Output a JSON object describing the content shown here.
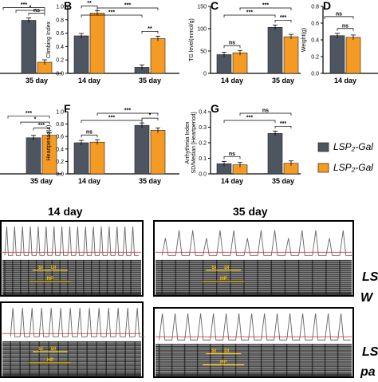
{
  "colors": {
    "series1": "#4d5560",
    "series2": "#f59a23",
    "trace_line": "#666666",
    "baseline": "#e05050",
    "ann": "#f5c000"
  },
  "panel_letters": [
    "B",
    "C",
    "D",
    "F",
    "G"
  ],
  "chart_data": [
    {
      "id": "A",
      "type": "bar",
      "categories": [
        "35 day"
      ],
      "series": [
        {
          "values": [
            0.95
          ]
        },
        {
          "values": [
            0.2
          ]
        }
      ],
      "ylim": [
        0,
        1.2
      ],
      "sig": [
        "ns",
        "*",
        "***"
      ]
    },
    {
      "id": "B",
      "type": "bar",
      "categories": [
        "14 day",
        "35 day"
      ],
      "series": [
        {
          "values": [
            0.56,
            0.09
          ]
        },
        {
          "values": [
            0.9,
            0.52
          ]
        }
      ],
      "ylabel": "Climbing Index",
      "ylim": [
        0,
        1.0
      ],
      "ticks": [
        "0.0",
        "0.2",
        "0.4",
        "0.6",
        "0.8",
        "1.0"
      ],
      "sig": [
        "**",
        "**",
        "***",
        "***"
      ]
    },
    {
      "id": "C",
      "type": "bar",
      "categories": [
        "14 day",
        "35 day"
      ],
      "series": [
        {
          "values": [
            42,
            103
          ]
        },
        {
          "values": [
            46,
            82
          ]
        }
      ],
      "ylabel": "TG level(mmol/g)",
      "ylim": [
        0,
        150
      ],
      "ticks": [
        "0",
        "50",
        "100",
        "150"
      ],
      "sig": [
        "ns",
        "***",
        "***",
        "***"
      ]
    },
    {
      "id": "D",
      "type": "bar",
      "categories": [
        "14 day"
      ],
      "series": [
        {
          "values": [
            0.45
          ]
        },
        {
          "values": [
            0.43
          ]
        }
      ],
      "ylabel": "Weight(g)",
      "ylim": [
        0,
        0.8
      ],
      "ticks": [
        "0.0",
        "0.2",
        "0.4",
        "0.6",
        "0.8"
      ],
      "sig": [
        "ns",
        "ns"
      ]
    },
    {
      "id": "E",
      "type": "bar",
      "categories": [
        "35 day"
      ],
      "series": [
        {
          "values": [
            0.58
          ]
        },
        {
          "values": [
            0.62
          ]
        }
      ],
      "ylim": [
        0,
        1.0
      ],
      "sig": [
        "***",
        "*",
        "***"
      ]
    },
    {
      "id": "F",
      "type": "bar",
      "categories": [
        "14 day",
        "35 day"
      ],
      "series": [
        {
          "values": [
            0.5,
            0.78
          ]
        },
        {
          "values": [
            0.51,
            0.7
          ]
        }
      ],
      "ylabel": "Heartperiod(s)",
      "ylim": [
        0,
        1.0
      ],
      "ticks": [
        "0.0",
        "0.2",
        "0.4",
        "0.6",
        "0.8",
        "1.0"
      ],
      "sig": [
        "ns",
        "*",
        "***",
        "***"
      ]
    },
    {
      "id": "G",
      "type": "bar",
      "categories": [
        "14 day",
        "35 day"
      ],
      "series": [
        {
          "values": [
            0.065,
            0.26
          ]
        },
        {
          "values": [
            0.058,
            0.068
          ]
        }
      ],
      "ylabel": "Arrhythmia Index\nSD/Median [Heartperiod]",
      "ylim": [
        0,
        0.4
      ],
      "ticks": [
        "0.0",
        "0.1",
        "0.2",
        "0.3",
        "0.4"
      ],
      "sig": [
        "ns",
        "***",
        "***",
        "ns"
      ]
    }
  ],
  "legend": [
    "LSP₂-Gal",
    "LSP₂-Gal"
  ],
  "traces": {
    "col_labels": [
      "14 day",
      "35 day"
    ],
    "row_labels": [
      [
        "LS",
        "W"
      ],
      [
        "LS",
        "pa"
      ]
    ],
    "annotations": [
      "SI",
      "DI",
      "HP"
    ]
  }
}
